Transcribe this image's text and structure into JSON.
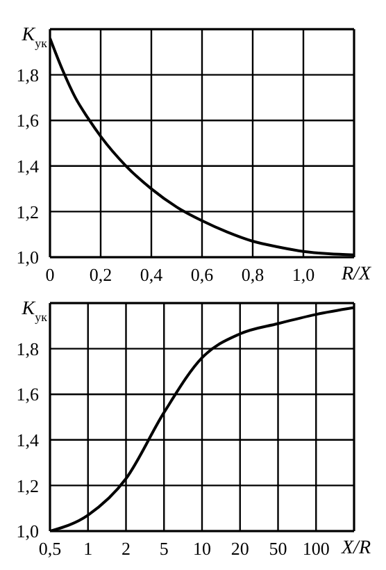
{
  "chart_data": [
    {
      "type": "line",
      "xlabel": "R/X",
      "ylabel": "K$_{ук}$",
      "xlim": [
        0,
        1.2
      ],
      "xticks": [
        0,
        {
          "value": 0.2,
          "label": "0,2"
        },
        {
          "value": 0.4,
          "label": "0,4"
        },
        {
          "value": 0.6,
          "label": "0,6"
        },
        {
          "value": 0.8,
          "label": "0,8"
        },
        {
          "value": 1,
          "label": "1,0"
        }
      ],
      "ylim": [
        1,
        2
      ],
      "yticks": [
        {
          "value": 1,
          "label": "1,0"
        },
        {
          "value": 1.2,
          "label": "1,2"
        },
        {
          "value": 1.4,
          "label": "1,4"
        },
        {
          "value": 1.6,
          "label": "1,6"
        },
        {
          "value": 1.8,
          "label": "1,8"
        }
      ],
      "grid": true,
      "marker": "none",
      "line_style": "solid",
      "series": [
        {
          "color": "#000000",
          "x": [
            0,
            0.05,
            0.1,
            0.15,
            0.2,
            0.3,
            0.4,
            0.5,
            0.6,
            0.7,
            0.8,
            0.9,
            1,
            1.1,
            1.2
          ],
          "values": [
            1.96,
            1.82,
            1.7,
            1.61,
            1.53,
            1.4,
            1.3,
            1.22,
            1.16,
            1.11,
            1.07,
            1.045,
            1.025,
            1.015,
            1.01
          ]
        }
      ]
    },
    {
      "type": "line",
      "xlabel": "X/R",
      "ylabel": "K$_{ук}$",
      "categories": [
        "0,5",
        "1",
        "2",
        "5",
        "10",
        "20",
        "50",
        "100",
        null
      ],
      "ylim": [
        1,
        2
      ],
      "yticks": [
        {
          "value": 1,
          "label": "1,0"
        },
        {
          "value": 1.2,
          "label": "1,2"
        },
        {
          "value": 1.4,
          "label": "1,4"
        },
        {
          "value": 1.6,
          "label": "1,6"
        },
        {
          "value": 1.8,
          "label": "1,8"
        }
      ],
      "grid": true,
      "marker": "none",
      "line_style": "solid",
      "series": [
        {
          "color": "#000000",
          "values": [
            1,
            1.07,
            1.23,
            1.52,
            1.76,
            1.865,
            1.91,
            1.95,
            1.98
          ]
        }
      ]
    }
  ]
}
